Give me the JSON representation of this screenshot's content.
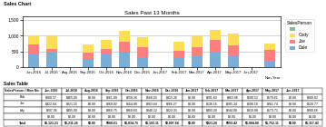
{
  "chart_data": {
    "type": "bar",
    "stacked": true,
    "window_title": "Sales Chart",
    "title": "Sales Past 13 Months",
    "xlabel": "Non-Year",
    "categories": [
      "Jun-2016",
      "Jul-2016",
      "Aug-2016",
      "Sep-2016",
      "Oct-2016",
      "Nov-2016",
      "Dec-2016",
      "Jan-2017",
      "Feb-2017",
      "Mar-2017",
      "Apr-2017",
      "May-2017",
      "Jun-2017",
      null
    ],
    "series": [
      {
        "name": "Dale",
        "color": "#7aaed6",
        "values": [
          400,
          450,
          0,
          260,
          410,
          500,
          315,
          0,
          290,
          360,
          500,
          370,
          0,
          200
        ]
      },
      {
        "name": "Joe",
        "color": "#ff7f7f",
        "values": [
          320,
          130,
          0,
          200,
          180,
          310,
          310,
          0,
          240,
          280,
          370,
          310,
          0,
          340
        ]
      },
      {
        "name": "Cody",
        "color": "#ffdd55",
        "values": [
          300,
          400,
          0,
          260,
          260,
          340,
          320,
          0,
          290,
          340,
          320,
          370,
          0,
          200
        ]
      },
      {
        "name": ".",
        "color": "#88bb88",
        "values": [
          0,
          0,
          0,
          0,
          0,
          0,
          0,
          0,
          0,
          0,
          0,
          0,
          0,
          0
        ]
      }
    ],
    "ylim": [
      0,
      1600
    ],
    "yticks": [
      0,
      500,
      {
        "value": 1000,
        "label": "1,000"
      },
      {
        "value": 1500,
        "label": "1,500"
      }
    ],
    "grid": true,
    "legend": "upper left",
    "legend_title": "SalesPerson",
    "table": {
      "title": "Sales Table",
      "header": "SalesPerson / Mon No.",
      "columns": [
        "Jun-2016",
        "Jul-2016",
        "Aug-2016",
        "Sep-2016",
        "Oct-2016",
        "Nov-2016",
        "Dec-2016",
        "Jan-2017",
        "Feb-2017",
        "Mar-2017",
        "Apr-2017",
        "May-2017",
        "Jun-2017",
        null
      ],
      "rows": [
        {
          "name": "Bob",
          "values": [
            "$000.37",
            "$465.00",
            "$0.00",
            "$261.89",
            "$250.26",
            "$568.93",
            "$315.26",
            "$0.00",
            "$291.60",
            "$363.98",
            "$500.52",
            "$570.61",
            "$0.00",
            "$200.82"
          ]
        },
        {
          "name": "Joe",
          "values": [
            "$422.84",
            "$321.15",
            "$0.00",
            "$260.02",
            "$164.89",
            "$303.64",
            "$266.27",
            "$0.00",
            "$136.16",
            "$285.34",
            "$608.18",
            "$262.74",
            "$0.00",
            "$520.77"
          ]
        },
        {
          "name": "Lilly",
          "values": [
            "$297.96",
            "$405.00",
            "$0.00",
            "$360.75",
            "$360.60",
            "$340.12",
            "$322.31",
            "$0.00",
            "$493.28",
            "$244.08",
            "$310.88",
            "$173.71",
            "$0.00",
            "$200.66"
          ]
        },
        {
          "name": null,
          "values": [
            "$0.00",
            "$0.00",
            "$0.00",
            "$0.00",
            "$0.00",
            "$0.00",
            "$0.00",
            "$0.00",
            "$0.00",
            "$0.00",
            "$0.00",
            "$0.00",
            "$0.00",
            "$0.00"
          ]
        },
        {
          "name": "Total",
          "values": [
            "$1,121.21",
            "$1,211.26",
            "$0.00",
            "$888.61",
            "$1,834.75",
            "$1,193.11",
            "$0,007.84",
            "$0.00",
            "$921.28",
            "$893.42",
            "$1,004.88",
            "$1,752.11",
            "$0.00",
            "$1,117.43"
          ]
        }
      ]
    }
  }
}
